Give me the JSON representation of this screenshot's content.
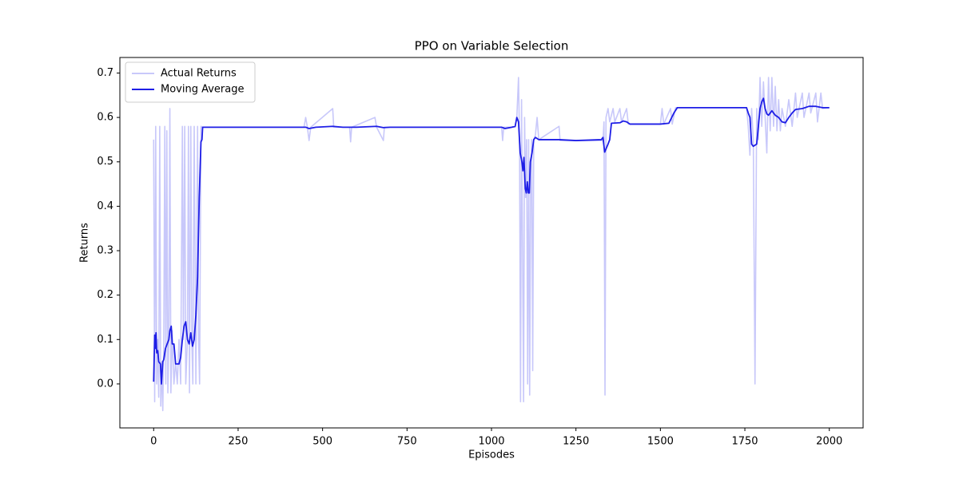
{
  "chart_data": {
    "type": "line",
    "title": "PPO on Variable Selection",
    "x_label": "Episodes",
    "y_label": "Returns",
    "xlim": [
      -100,
      2100
    ],
    "ylim": [
      -0.099,
      0.735
    ],
    "xticks": [
      0,
      250,
      500,
      750,
      1000,
      1250,
      1500,
      1750,
      2000
    ],
    "yticks": [
      {
        "value": 0,
        "label": "0.0"
      },
      0.1,
      0.2,
      0.3,
      0.4,
      0.5,
      0.6,
      0.7
    ],
    "grid": false,
    "legend": "upper-left",
    "series": [
      {
        "name": "Actual Returns",
        "color": "#c8c8fa",
        "x": [
          0,
          3,
          6,
          9,
          12,
          15,
          18,
          21,
          24,
          27,
          30,
          33,
          36,
          39,
          42,
          45,
          48,
          51,
          55,
          60,
          65,
          70,
          75,
          80,
          85,
          88,
          92,
          95,
          100,
          103,
          106,
          110,
          113,
          116,
          120,
          125,
          130,
          133,
          136,
          140,
          145,
          445,
          450,
          455,
          460,
          465,
          530,
          533,
          580,
          583,
          586,
          655,
          660,
          680,
          683,
          1030,
          1033,
          1036,
          1070,
          1075,
          1080,
          1083,
          1086,
          1089,
          1092,
          1095,
          1098,
          1101,
          1104,
          1107,
          1110,
          1113,
          1116,
          1119,
          1122,
          1125,
          1130,
          1135,
          1140,
          1200,
          1203,
          1330,
          1333,
          1336,
          1339,
          1345,
          1350,
          1360,
          1365,
          1380,
          1385,
          1400,
          1405,
          1500,
          1505,
          1510,
          1530,
          1535,
          1545,
          1755,
          1760,
          1765,
          1770,
          1775,
          1780,
          1785,
          1790,
          1795,
          1800,
          1805,
          1810,
          1815,
          1820,
          1825,
          1830,
          1835,
          1840,
          1845,
          1850,
          1855,
          1860,
          1870,
          1880,
          1890,
          1900,
          1905,
          1920,
          1925,
          1940,
          1945,
          1960,
          1965,
          1975,
          1980,
          2000
        ],
        "values": [
          0.55,
          -0.04,
          0.58,
          0,
          0.1,
          -0.03,
          0.58,
          -0.05,
          0.05,
          -0.06,
          0.1,
          0.58,
          0,
          0.57,
          -0.02,
          0.1,
          0.62,
          -0.02,
          0.12,
          0,
          0.05,
          0,
          0.1,
          0,
          0.58,
          0.1,
          0.58,
          0,
          0.1,
          0.58,
          -0.02,
          0.58,
          0.1,
          0,
          0.58,
          0,
          0.58,
          0.1,
          0,
          0.58,
          0.578,
          0.578,
          0.6,
          0.578,
          0.548,
          0.578,
          0.62,
          0.578,
          0.578,
          0.545,
          0.578,
          0.6,
          0.578,
          0.548,
          0.578,
          0.578,
          0.548,
          0.578,
          0.578,
          0.6,
          0.69,
          0.55,
          -0.04,
          0.64,
          0.3,
          -0.04,
          0.6,
          0.42,
          0.55,
          0,
          0.55,
          -0.025,
          0.45,
          0.55,
          0.03,
          0.55,
          0.56,
          0.6,
          0.55,
          0.58,
          0.548,
          0.548,
          0.59,
          -0.025,
          0.6,
          0.62,
          0.59,
          0.62,
          0.59,
          0.62,
          0.59,
          0.62,
          0.585,
          0.585,
          0.62,
          0.585,
          0.62,
          0.585,
          0.622,
          0.622,
          0.58,
          0.515,
          0.62,
          0.55,
          0,
          0.62,
          0.55,
          0.69,
          0.58,
          0.68,
          0.6,
          0.52,
          0.69,
          0.57,
          0.69,
          0.58,
          0.67,
          0.57,
          0.64,
          0.57,
          0.62,
          0.58,
          0.64,
          0.58,
          0.655,
          0.6,
          0.655,
          0.6,
          0.655,
          0.61,
          0.655,
          0.59,
          0.655,
          0.62,
          0.622
        ]
      },
      {
        "name": "Moving Average",
        "color": "#1e1ee6",
        "x": [
          0,
          3,
          5,
          7,
          9,
          12,
          15,
          20,
          23,
          27,
          30,
          35,
          40,
          45,
          48,
          52,
          55,
          60,
          65,
          75,
          80,
          85,
          90,
          95,
          100,
          105,
          110,
          115,
          120,
          125,
          130,
          135,
          140,
          143,
          145,
          450,
          460,
          480,
          530,
          560,
          600,
          660,
          680,
          700,
          1030,
          1040,
          1060,
          1070,
          1075,
          1080,
          1085,
          1090,
          1093,
          1096,
          1100,
          1103,
          1106,
          1109,
          1112,
          1115,
          1120,
          1125,
          1130,
          1140,
          1200,
          1250,
          1325,
          1330,
          1335,
          1345,
          1350,
          1355,
          1380,
          1390,
          1400,
          1410,
          1500,
          1525,
          1540,
          1550,
          1755,
          1760,
          1765,
          1770,
          1775,
          1785,
          1790,
          1795,
          1800,
          1805,
          1810,
          1815,
          1820,
          1825,
          1830,
          1835,
          1840,
          1850,
          1860,
          1870,
          1880,
          1890,
          1900,
          1920,
          1940,
          1960,
          1980,
          2000
        ],
        "values": [
          0.005,
          0.11,
          0.08,
          0.115,
          0.07,
          0.075,
          0.05,
          0.045,
          0,
          0.05,
          0.055,
          0.08,
          0.09,
          0.1,
          0.12,
          0.13,
          0.09,
          0.09,
          0.045,
          0.045,
          0.06,
          0.1,
          0.13,
          0.14,
          0.1,
          0.09,
          0.115,
          0.085,
          0.1,
          0.155,
          0.24,
          0.42,
          0.545,
          0.55,
          0.578,
          0.578,
          0.575,
          0.578,
          0.58,
          0.578,
          0.578,
          0.58,
          0.577,
          0.578,
          0.578,
          0.575,
          0.578,
          0.58,
          0.6,
          0.59,
          0.52,
          0.5,
          0.48,
          0.51,
          0.44,
          0.43,
          0.455,
          0.43,
          0.43,
          0.5,
          0.52,
          0.55,
          0.555,
          0.55,
          0.55,
          0.548,
          0.55,
          0.555,
          0.522,
          0.54,
          0.55,
          0.587,
          0.588,
          0.592,
          0.59,
          0.585,
          0.585,
          0.587,
          0.61,
          0.622,
          0.622,
          0.61,
          0.6,
          0.54,
          0.535,
          0.54,
          0.58,
          0.62,
          0.635,
          0.643,
          0.62,
          0.608,
          0.605,
          0.61,
          0.615,
          0.61,
          0.605,
          0.6,
          0.59,
          0.588,
          0.6,
          0.61,
          0.618,
          0.62,
          0.625,
          0.625,
          0.622,
          0.622
        ]
      }
    ]
  }
}
